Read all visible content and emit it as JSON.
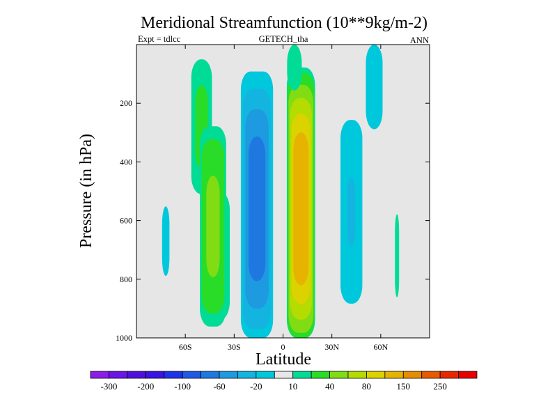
{
  "chart_data": {
    "type": "contour",
    "title": "Meridional Streamfunction (10**9kg/m-2)",
    "subtitle_left": "Expt = tdlcc",
    "subtitle_center": "GETECH_tha",
    "subtitle_right": "ANN",
    "xlabel": "Latitude",
    "ylabel": "Pressure (in hPa)",
    "xlim": [
      -90,
      90
    ],
    "ylim": [
      0,
      1000
    ],
    "y_reversed": true,
    "x_ticks": [
      {
        "value": -60,
        "label": "60S"
      },
      {
        "value": -30,
        "label": "30S"
      },
      {
        "value": 0,
        "label": "0"
      },
      {
        "value": 30,
        "label": "30N"
      },
      {
        "value": 60,
        "label": "60N"
      }
    ],
    "y_ticks": [
      {
        "value": 200,
        "label": "200"
      },
      {
        "value": 400,
        "label": "400"
      },
      {
        "value": 600,
        "label": "600"
      },
      {
        "value": 800,
        "label": "800"
      },
      {
        "value": 1000,
        "label": "1000"
      }
    ],
    "colorbar": {
      "colors": [
        "#8a1ee6",
        "#6a14e6",
        "#5010dc",
        "#3a14e0",
        "#1e32e6",
        "#1e5ae6",
        "#1e78e0",
        "#1e9ae0",
        "#14b4e0",
        "#00c8dc",
        "#e6e6e6",
        "#00dc96",
        "#28dc28",
        "#82dc14",
        "#b4dc00",
        "#dcd200",
        "#e6b400",
        "#e68c00",
        "#e65a00",
        "#e62800",
        "#e60000"
      ],
      "labels": [
        {
          "after_box": 1,
          "text": "-300"
        },
        {
          "after_box": 3,
          "text": "-200"
        },
        {
          "after_box": 5,
          "text": "-100"
        },
        {
          "after_box": 7,
          "text": "-60"
        },
        {
          "after_box": 9,
          "text": "-20"
        },
        {
          "after_box": 11,
          "text": "10"
        },
        {
          "after_box": 13,
          "text": "40"
        },
        {
          "after_box": 15,
          "text": "80"
        },
        {
          "after_box": 17,
          "text": "150"
        },
        {
          "after_box": 19,
          "text": "250"
        }
      ]
    },
    "cells": [
      {
        "name": "cell-60s-upper-band",
        "lat_center": -50,
        "lat_halfwidth": 8,
        "p_center": 280,
        "p_halfwidth": 290,
        "peak": 25
      },
      {
        "name": "cell-60s-lower-band",
        "lat_center": -40,
        "lat_halfwidth": 10,
        "p_center": 720,
        "p_halfwidth": 300,
        "peak": 20
      },
      {
        "name": "cell-southern-ferrel",
        "lat_center": -43,
        "lat_halfwidth": 9,
        "p_center": 620,
        "p_halfwidth": 380,
        "peak": 48
      },
      {
        "name": "cell-southern-polar",
        "lat_center": -72,
        "lat_halfwidth": 5,
        "p_center": 670,
        "p_halfwidth": 260,
        "peak": -24
      },
      {
        "name": "cell-southern-hadley",
        "lat_center": -16,
        "lat_halfwidth": 11,
        "p_center": 560,
        "p_halfwidth": 520,
        "peak": -98
      },
      {
        "name": "cell-northern-hadley",
        "lat_center": 11,
        "lat_halfwidth": 9,
        "p_center": 560,
        "p_halfwidth": 500,
        "peak": 130
      },
      {
        "name": "cell-northern-hadley-upper",
        "lat_center": 7,
        "lat_halfwidth": 7,
        "p_center": 60,
        "p_halfwidth": 150,
        "peak": 16
      },
      {
        "name": "cell-northern-ferrel",
        "lat_center": 42,
        "lat_halfwidth": 9,
        "p_center": 570,
        "p_halfwidth": 420,
        "peak": -42
      },
      {
        "name": "cell-northern-upper-band",
        "lat_center": 56,
        "lat_halfwidth": 9,
        "p_center": 140,
        "p_halfwidth": 260,
        "peak": -28
      },
      {
        "name": "cell-northern-polar",
        "lat_center": 70,
        "lat_halfwidth": 2,
        "p_center": 720,
        "p_halfwidth": 220,
        "peak": 16
      }
    ]
  }
}
